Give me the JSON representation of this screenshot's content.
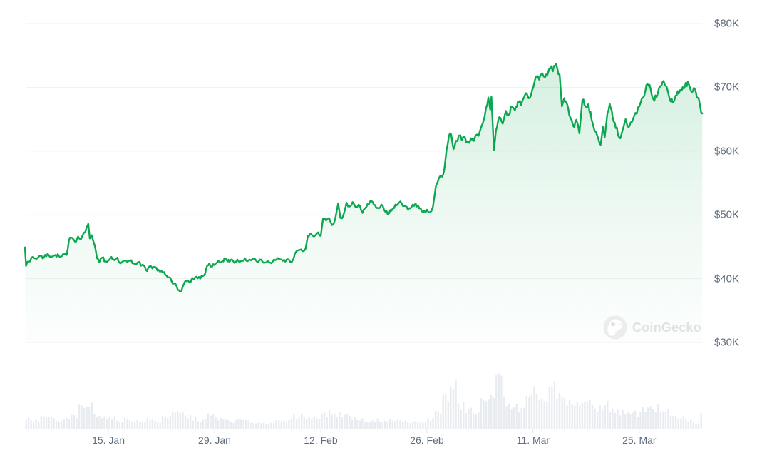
{
  "watermark": {
    "text": "CoinGecko"
  },
  "colors": {
    "background": "#ffffff",
    "line": "#0ca750",
    "fill_top": "rgba(12,167,80,0.20)",
    "fill_mid": "rgba(12,167,80,0.06)",
    "fill_bottom": "rgba(12,167,80,0.01)",
    "grid": "#eef1f2",
    "axis_text": "#5d6b7d",
    "volume_bar": "#e8ecf1",
    "tick": "#e3e7ea",
    "baseline": "#eceff2",
    "watermark_text": "#e0e1e3",
    "logo_circle": "#ececec"
  },
  "chart_data": {
    "type": "line",
    "description": "Price chart with volume bars (CoinGecko style), values in USD thousands",
    "legend": "none",
    "grid": "horizontal-only",
    "y_axis": {
      "side": "right",
      "tick_labels": [
        "$80K",
        "$70K",
        "$60K",
        "$50K",
        "$40K",
        "$30K"
      ],
      "tick_values_k": [
        80,
        70,
        60,
        50,
        40,
        30
      ],
      "range_k": [
        30,
        80
      ]
    },
    "x_axis": {
      "tick_labels": [
        "15. Jan",
        "29. Jan",
        "12. Feb",
        "26. Feb",
        "11. Mar",
        "25. Mar"
      ],
      "tick_day_offsets": [
        11,
        25,
        39,
        53,
        67,
        81
      ],
      "days_span": [
        0,
        89.3
      ]
    },
    "series": [
      {
        "name": "price_usd_k",
        "points": [
          [
            0,
            44.9
          ],
          [
            0.15,
            42.0
          ],
          [
            0.5,
            42.7
          ],
          [
            1,
            43.4
          ],
          [
            1.5,
            43.1
          ],
          [
            2,
            43.6
          ],
          [
            2.5,
            43.3
          ],
          [
            3,
            43.9
          ],
          [
            3.5,
            43.4
          ],
          [
            4,
            43.7
          ],
          [
            4.5,
            43.5
          ],
          [
            5,
            43.8
          ],
          [
            5.5,
            43.7
          ],
          [
            5.8,
            46.0
          ],
          [
            6.2,
            46.4
          ],
          [
            6.6,
            45.8
          ],
          [
            7,
            46.6
          ],
          [
            7.4,
            46.2
          ],
          [
            7.8,
            47.2
          ],
          [
            8.1,
            47.9
          ],
          [
            8.35,
            48.6
          ],
          [
            8.55,
            46.3
          ],
          [
            8.8,
            46.8
          ],
          [
            9.2,
            45.2
          ],
          [
            9.5,
            43.2
          ],
          [
            9.8,
            42.6
          ],
          [
            10.2,
            43.3
          ],
          [
            10.6,
            42.7
          ],
          [
            11,
            42.9
          ],
          [
            11.4,
            43.4
          ],
          [
            11.8,
            42.9
          ],
          [
            12.2,
            43.3
          ],
          [
            12.6,
            42.4
          ],
          [
            13,
            42.8
          ],
          [
            13.5,
            42.6
          ],
          [
            14,
            42.9
          ],
          [
            14.5,
            42.3
          ],
          [
            15,
            42.6
          ],
          [
            15.4,
            42.1
          ],
          [
            15.8,
            41.9
          ],
          [
            16.1,
            41.2
          ],
          [
            16.4,
            41.9
          ],
          [
            16.8,
            41.6
          ],
          [
            17.2,
            41.8
          ],
          [
            17.6,
            41.4
          ],
          [
            18,
            41.2
          ],
          [
            18.5,
            40.6
          ],
          [
            19,
            40.2
          ],
          [
            19.5,
            39.2
          ],
          [
            20,
            38.8
          ],
          [
            20.3,
            38.2
          ],
          [
            20.6,
            38.0
          ],
          [
            20.9,
            39.0
          ],
          [
            21.3,
            39.6
          ],
          [
            21.7,
            39.4
          ],
          [
            22.1,
            40.1
          ],
          [
            22.6,
            40.3
          ],
          [
            23.1,
            40.0
          ],
          [
            23.6,
            40.5
          ],
          [
            23.9,
            41.6
          ],
          [
            24.3,
            42.4
          ],
          [
            24.7,
            41.9
          ],
          [
            25.1,
            42.3
          ],
          [
            25.5,
            42.8
          ],
          [
            25.9,
            42.6
          ],
          [
            26.3,
            43.2
          ],
          [
            26.7,
            42.7
          ],
          [
            27.1,
            42.9
          ],
          [
            27.6,
            42.5
          ],
          [
            28,
            43.0
          ],
          [
            28.5,
            42.8
          ],
          [
            29,
            43.2
          ],
          [
            29.5,
            42.9
          ],
          [
            30,
            43.1
          ],
          [
            30.5,
            42.8
          ],
          [
            31,
            43.0
          ],
          [
            31.5,
            42.5
          ],
          [
            32,
            42.8
          ],
          [
            32.5,
            42.4
          ],
          [
            33,
            42.9
          ],
          [
            33.5,
            43.1
          ],
          [
            34,
            42.8
          ],
          [
            34.5,
            43.0
          ],
          [
            35,
            42.6
          ],
          [
            35.4,
            43.1
          ],
          [
            35.8,
            44.3
          ],
          [
            36.2,
            44.5
          ],
          [
            36.6,
            44.3
          ],
          [
            37,
            44.7
          ],
          [
            37.3,
            46.7
          ],
          [
            37.7,
            47.0
          ],
          [
            38.1,
            46.6
          ],
          [
            38.5,
            47.1
          ],
          [
            39,
            46.7
          ],
          [
            39.3,
            49.4
          ],
          [
            39.7,
            49.1
          ],
          [
            40.1,
            49.5
          ],
          [
            40.5,
            48.4
          ],
          [
            40.9,
            49.3
          ],
          [
            41.3,
            51.8
          ],
          [
            41.6,
            49.5
          ],
          [
            42,
            50.0
          ],
          [
            42.4,
            51.9
          ],
          [
            42.8,
            51.3
          ],
          [
            43.2,
            52.0
          ],
          [
            43.6,
            51.2
          ],
          [
            44,
            51.6
          ],
          [
            44.5,
            50.3
          ],
          [
            45,
            51.2
          ],
          [
            45.5,
            52.1
          ],
          [
            46,
            51.6
          ],
          [
            46.5,
            51.1
          ],
          [
            47,
            51.6
          ],
          [
            47.5,
            50.5
          ],
          [
            48,
            50.2
          ],
          [
            48.5,
            51.0
          ],
          [
            49,
            51.5
          ],
          [
            49.5,
            52.1
          ],
          [
            50,
            51.4
          ],
          [
            50.5,
            50.8
          ],
          [
            51,
            51.3
          ],
          [
            51.5,
            51.8
          ],
          [
            52,
            51.0
          ],
          [
            52.5,
            50.4
          ],
          [
            53,
            50.8
          ],
          [
            53.4,
            50.4
          ],
          [
            53.8,
            51.3
          ],
          [
            54.2,
            54.6
          ],
          [
            54.6,
            55.8
          ],
          [
            55,
            56.0
          ],
          [
            55.3,
            57.2
          ],
          [
            55.6,
            60.3
          ],
          [
            55.9,
            62.4
          ],
          [
            56.2,
            62.6
          ],
          [
            56.5,
            60.3
          ],
          [
            56.8,
            61.6
          ],
          [
            57.2,
            62.4
          ],
          [
            57.6,
            61.7
          ],
          [
            58,
            62.2
          ],
          [
            58.4,
            61.5
          ],
          [
            58.8,
            62.0
          ],
          [
            59.2,
            61.6
          ],
          [
            59.6,
            62.6
          ],
          [
            60,
            63.2
          ],
          [
            60.4,
            64.5
          ],
          [
            60.8,
            66.8
          ],
          [
            61.1,
            68.4
          ],
          [
            61.35,
            66.5
          ],
          [
            61.5,
            68.5
          ],
          [
            61.7,
            63.5
          ],
          [
            61.85,
            60.2
          ],
          [
            62.1,
            63.2
          ],
          [
            62.4,
            64.8
          ],
          [
            62.7,
            65.2
          ],
          [
            63,
            64.3
          ],
          [
            63.4,
            66.3
          ],
          [
            63.8,
            65.7
          ],
          [
            64.2,
            66.9
          ],
          [
            64.6,
            66.4
          ],
          [
            65,
            67.8
          ],
          [
            65.4,
            67.2
          ],
          [
            65.8,
            68.4
          ],
          [
            66.2,
            68.9
          ],
          [
            66.6,
            68.4
          ],
          [
            67,
            69.9
          ],
          [
            67.4,
            71.7
          ],
          [
            67.8,
            71.2
          ],
          [
            68.2,
            72.2
          ],
          [
            68.6,
            71.6
          ],
          [
            69,
            72.4
          ],
          [
            69.4,
            73.3
          ],
          [
            69.6,
            72.5
          ],
          [
            69.9,
            73.4
          ],
          [
            70.2,
            72.9
          ],
          [
            70.5,
            72.0
          ],
          [
            70.8,
            67.0
          ],
          [
            71.1,
            68.3
          ],
          [
            71.5,
            67.3
          ],
          [
            71.9,
            65.3
          ],
          [
            72.3,
            63.9
          ],
          [
            72.7,
            64.9
          ],
          [
            73.1,
            62.8
          ],
          [
            73.5,
            68.0
          ],
          [
            73.9,
            67.0
          ],
          [
            74.3,
            67.4
          ],
          [
            74.7,
            65.0
          ],
          [
            75.1,
            63.2
          ],
          [
            75.5,
            62.3
          ],
          [
            75.9,
            61.0
          ],
          [
            76.2,
            63.8
          ],
          [
            76.45,
            62.2
          ],
          [
            76.8,
            66.0
          ],
          [
            77.1,
            67.4
          ],
          [
            77.5,
            65.2
          ],
          [
            77.9,
            63.6
          ],
          [
            78.5,
            62.0
          ],
          [
            79.2,
            65.0
          ],
          [
            79.6,
            63.7
          ],
          [
            80,
            64.5
          ],
          [
            80.5,
            66.0
          ],
          [
            81,
            67.0
          ],
          [
            81.5,
            68.4
          ],
          [
            82.1,
            70.5
          ],
          [
            82.5,
            69.7
          ],
          [
            83,
            67.9
          ],
          [
            83.4,
            68.9
          ],
          [
            83.8,
            70.2
          ],
          [
            84.2,
            71.0
          ],
          [
            84.6,
            70.1
          ],
          [
            85,
            68.2
          ],
          [
            85.4,
            67.6
          ],
          [
            85.8,
            68.7
          ],
          [
            86.2,
            69.0
          ],
          [
            86.6,
            69.5
          ],
          [
            87,
            70.1
          ],
          [
            87.4,
            70.9
          ],
          [
            87.8,
            69.5
          ],
          [
            88.2,
            69.9
          ],
          [
            88.6,
            68.4
          ],
          [
            89,
            67.2
          ],
          [
            89.3,
            65.9
          ]
        ]
      }
    ],
    "volume": {
      "name": "volume_relative_0_to_1",
      "by_day": [
        0.2,
        0.16,
        0.25,
        0.22,
        0.15,
        0.2,
        0.26,
        0.42,
        0.48,
        0.32,
        0.25,
        0.22,
        0.18,
        0.2,
        0.16,
        0.15,
        0.18,
        0.15,
        0.25,
        0.3,
        0.32,
        0.25,
        0.2,
        0.18,
        0.28,
        0.22,
        0.18,
        0.15,
        0.18,
        0.15,
        0.13,
        0.12,
        0.14,
        0.15,
        0.15,
        0.25,
        0.28,
        0.22,
        0.25,
        0.3,
        0.32,
        0.3,
        0.28,
        0.22,
        0.18,
        0.15,
        0.18,
        0.16,
        0.18,
        0.17,
        0.15,
        0.14,
        0.13,
        0.2,
        0.38,
        0.65,
        0.88,
        0.48,
        0.4,
        0.32,
        0.55,
        0.8,
        1.0,
        0.6,
        0.45,
        0.4,
        0.6,
        0.75,
        0.6,
        0.85,
        0.65,
        0.55,
        0.5,
        0.6,
        0.5,
        0.45,
        0.5,
        0.42,
        0.35,
        0.3,
        0.32,
        0.4,
        0.48,
        0.42,
        0.35,
        0.25,
        0.22,
        0.18,
        0.12,
        0.28,
        0.42
      ]
    }
  }
}
